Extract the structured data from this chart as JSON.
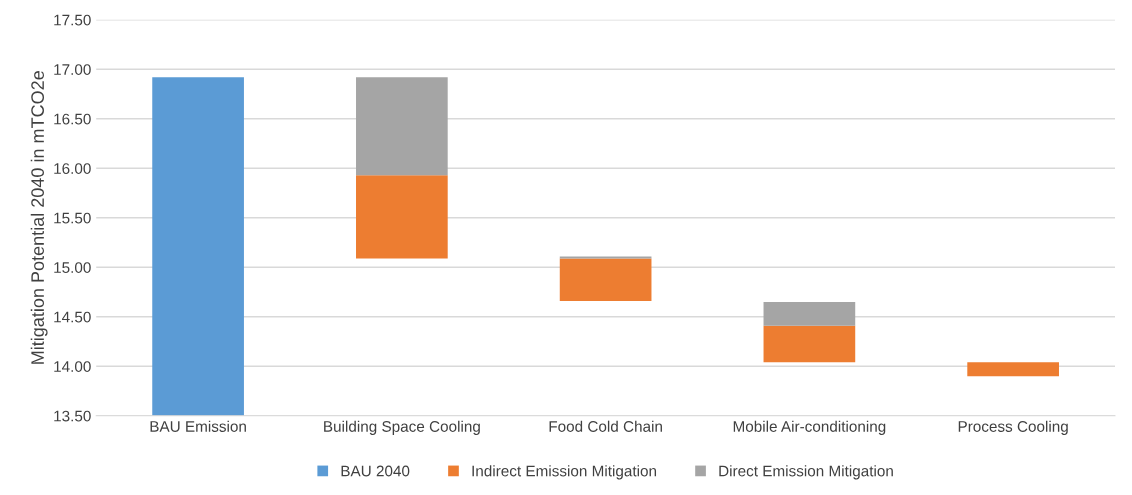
{
  "chart_data": {
    "type": "bar",
    "ylabel": "Mitigation Potential 2040 in mTCO2e",
    "categories": [
      "BAU Emission",
      "Building Space Cooling",
      "Food Cold Chain",
      "Mobile Air-conditioning",
      "Process Cooling"
    ],
    "series": [
      {
        "name": "BAU 2040",
        "color": "#5b9bd5",
        "base": [
          13.5,
          null,
          null,
          null,
          null
        ],
        "values": [
          3.42,
          null,
          null,
          null,
          null
        ]
      },
      {
        "name": "Indirect Emission Mitigation",
        "color": "#ed7d31",
        "base": [
          null,
          15.09,
          14.66,
          14.04,
          13.9
        ],
        "values": [
          null,
          0.84,
          0.43,
          0.37,
          0.14
        ]
      },
      {
        "name": "Direct Emission Mitigation",
        "color": "#a5a5a5",
        "base": [
          null,
          15.93,
          15.09,
          14.41,
          null
        ],
        "values": [
          null,
          0.99,
          0.02,
          0.24,
          null
        ]
      }
    ],
    "ylim": [
      13.5,
      17.5
    ],
    "yticks": [
      {
        "value": 13.5,
        "label": "13.50"
      },
      {
        "value": 14,
        "label": "14.00"
      },
      {
        "value": 14.5,
        "label": "14.50"
      },
      {
        "value": 15,
        "label": "15.00"
      },
      {
        "value": 15.5,
        "label": "15.50"
      },
      {
        "value": 16,
        "label": "16.00"
      },
      {
        "value": 16.5,
        "label": "16.50"
      },
      {
        "value": 17,
        "label": "17.00"
      },
      {
        "value": 17.5,
        "label": "17.50"
      }
    ],
    "grid": "y",
    "legend": "bottom"
  }
}
